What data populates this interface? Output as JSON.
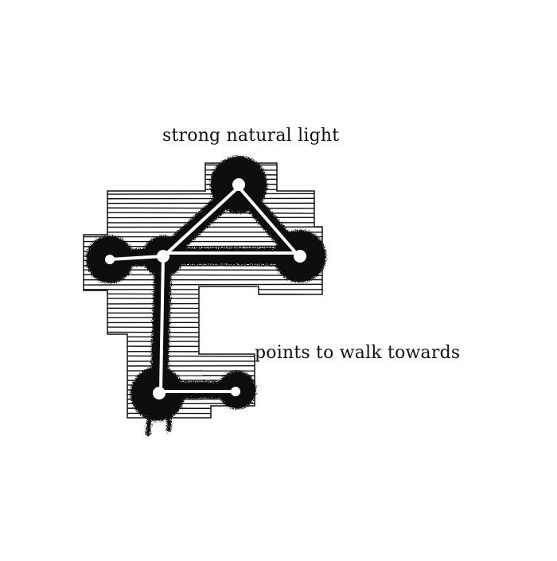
{
  "labels": {
    "top": "strong natural light",
    "right": "points to walk towards"
  },
  "colors": {
    "ink": "#111111",
    "background": "#ffffff"
  }
}
